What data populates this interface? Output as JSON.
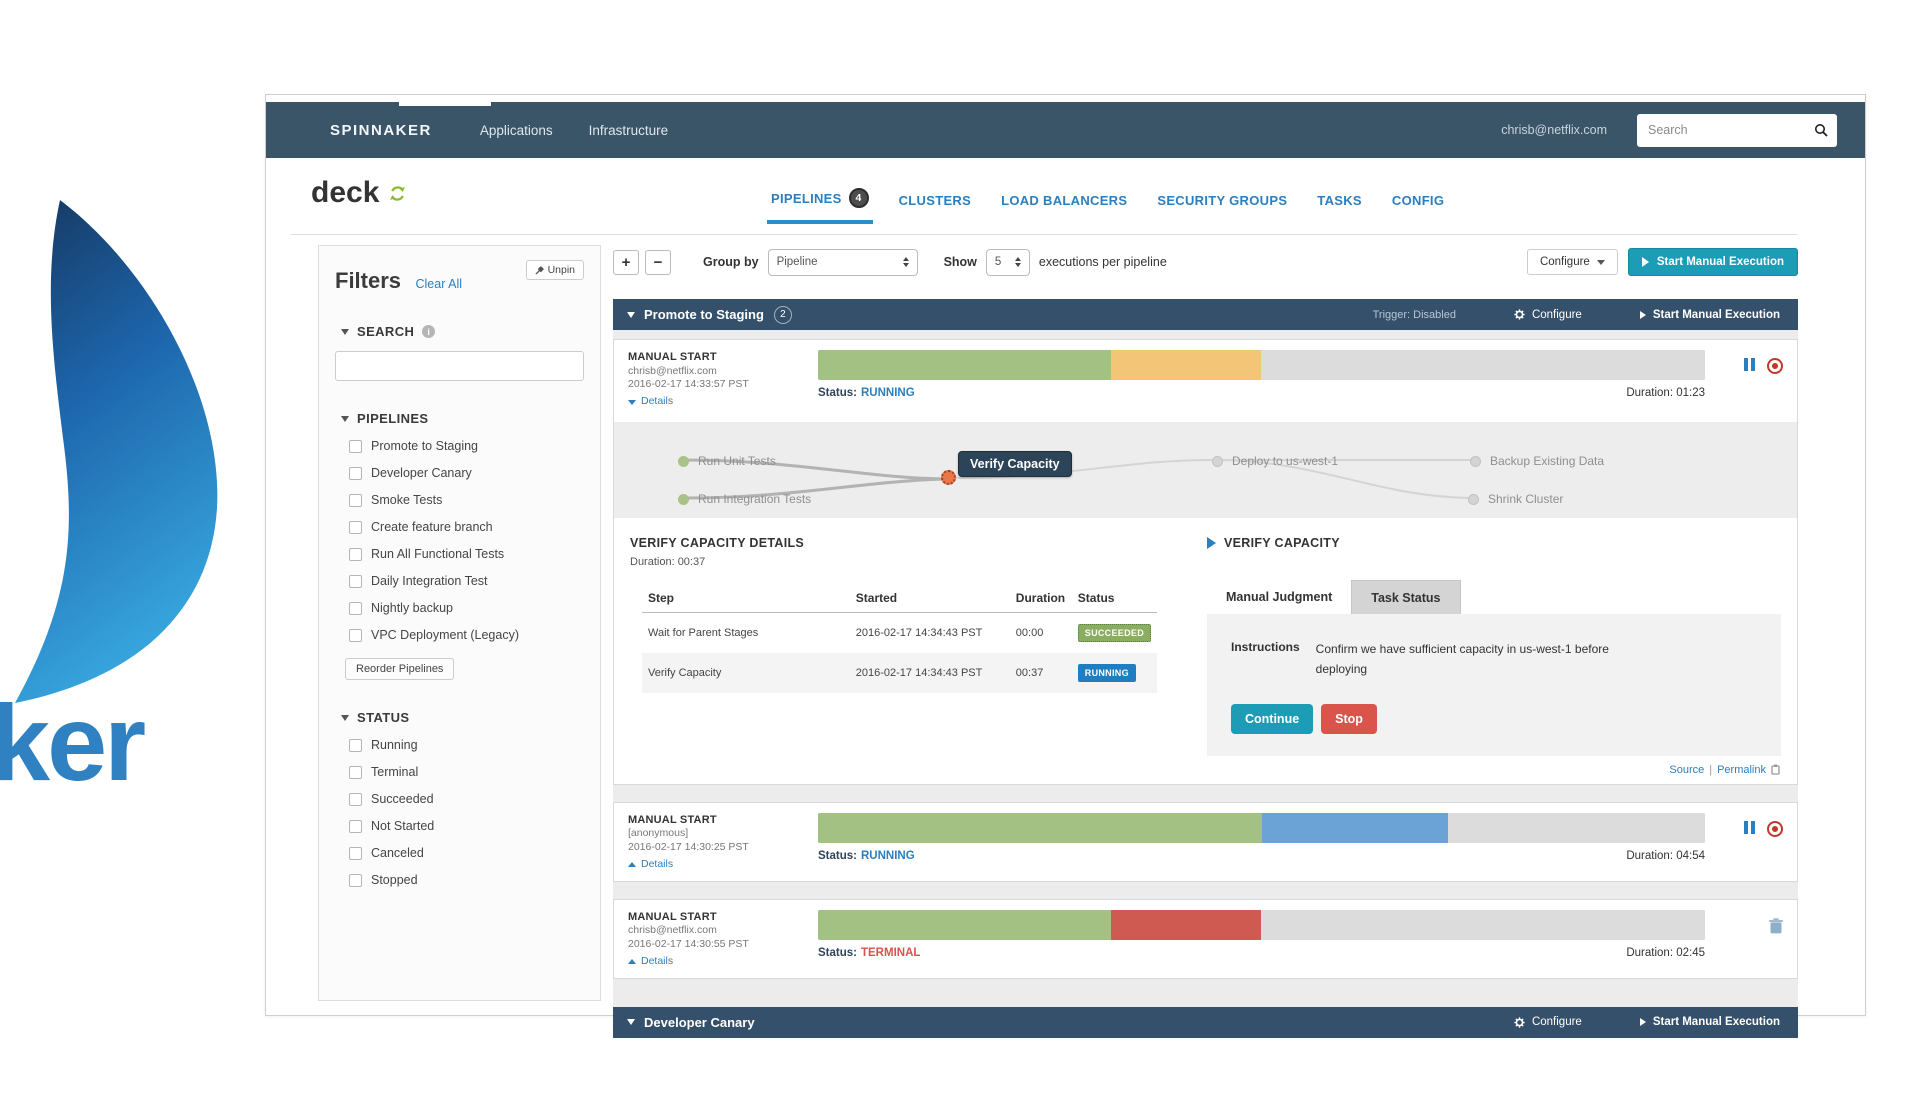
{
  "page": {
    "wordmark_fragment": "ker"
  },
  "navbar": {
    "brand": "SPINNAKER",
    "items": [
      {
        "label": "Applications",
        "active": true
      },
      {
        "label": "Infrastructure",
        "active": false
      }
    ],
    "user_email": "chrisb@netflix.com",
    "search_placeholder": "Search"
  },
  "header": {
    "app_name": "deck",
    "tabs": [
      {
        "label": "PIPELINES",
        "badge": "4",
        "active": true
      },
      {
        "label": "CLUSTERS"
      },
      {
        "label": "LOAD BALANCERS"
      },
      {
        "label": "SECURITY GROUPS"
      },
      {
        "label": "TASKS"
      },
      {
        "label": "CONFIG"
      }
    ]
  },
  "filters": {
    "title": "Filters",
    "clear_all": "Clear All",
    "unpin": "Unpin",
    "search_section": "SEARCH",
    "pipelines_section": "PIPELINES",
    "pipeline_options": [
      "Promote to Staging",
      "Developer Canary",
      "Smoke Tests",
      "Create feature branch",
      "Run All Functional Tests",
      "Daily Integration Test",
      "Nightly backup",
      "VPC Deployment (Legacy)"
    ],
    "reorder_button": "Reorder Pipelines",
    "status_section": "STATUS",
    "status_options": [
      "Running",
      "Terminal",
      "Succeeded",
      "Not Started",
      "Canceled",
      "Stopped"
    ]
  },
  "toolbar": {
    "plus": "+",
    "minus": "−",
    "group_by_label": "Group by",
    "group_by_value": "Pipeline",
    "show_label": "Show",
    "show_value": "5",
    "show_suffix": "executions per pipeline",
    "configure_label": "Configure",
    "start_label": "Start Manual Execution"
  },
  "groups": [
    {
      "name": "Promote to Staging",
      "badge": "2",
      "trigger": "Trigger: Disabled",
      "configure": "Configure",
      "start": "Start Manual Execution"
    },
    {
      "name": "Developer Canary",
      "configure": "Configure",
      "start": "Start Manual Execution"
    }
  ],
  "executions": [
    {
      "trigger_type": "MANUAL START",
      "user": "chrisb@netflix.com",
      "time": "2016-02-17 14:33:57 PST",
      "details_label": "Details",
      "status_label": "Status:",
      "status": "RUNNING",
      "duration": "Duration: 01:23",
      "bar": [
        {
          "color": "bar_green",
          "pct": 33
        },
        {
          "color": "bar_orange",
          "pct": 17
        },
        {
          "color": "bar_gray",
          "pct": 50
        }
      ]
    },
    {
      "trigger_type": "MANUAL START",
      "user": "[anonymous]",
      "time": "2016-02-17 14:30:25 PST",
      "details_label": "Details",
      "status_label": "Status:",
      "status": "RUNNING",
      "duration": "Duration: 04:54",
      "bar": [
        {
          "color": "bar_green",
          "pct": 50
        },
        {
          "color": "bar_blue",
          "pct": 21
        },
        {
          "color": "bar_gray",
          "pct": 29
        }
      ]
    },
    {
      "trigger_type": "MANUAL START",
      "user": "chrisb@netflix.com",
      "time": "2016-02-17 14:30:55 PST",
      "details_label": "Details",
      "status_label": "Status:",
      "status": "TERMINAL",
      "duration": "Duration: 02:45",
      "bar": [
        {
          "color": "bar_green",
          "pct": 33
        },
        {
          "color": "bar_red",
          "pct": 17
        },
        {
          "color": "bar_gray",
          "pct": 50
        }
      ]
    }
  ],
  "stage_graph": {
    "nodes": [
      "Run Unit Tests",
      "Run Integration Tests",
      "Verify Capacity",
      "Deploy to us-west-1",
      "Backup Existing Data",
      "Shrink Cluster"
    ],
    "selected": "Verify Capacity"
  },
  "details": {
    "title": "VERIFY CAPACITY DETAILS",
    "duration": "Duration: 00:37",
    "table": {
      "headers": [
        "Step",
        "Started",
        "Duration",
        "Status"
      ],
      "rows": [
        {
          "step": "Wait for Parent Stages",
          "started": "2016-02-17 14:34:43 PST",
          "duration": "00:00",
          "status": "SUCCEEDED"
        },
        {
          "step": "Verify Capacity",
          "started": "2016-02-17 14:34:43 PST",
          "duration": "00:37",
          "status": "RUNNING"
        }
      ]
    }
  },
  "judgment": {
    "title": "VERIFY CAPACITY",
    "tabs": [
      {
        "label": "Manual Judgment",
        "active": true
      },
      {
        "label": "Task Status",
        "active": false
      }
    ],
    "instructions_label": "Instructions",
    "instructions_text": "Confirm we have sufficient capacity in us-west-1 before deploying",
    "continue_label": "Continue",
    "stop_label": "Stop",
    "source_link": "Source",
    "permalink_link": "Permalink"
  },
  "colors": {
    "accent_teal": "#1d9cb5",
    "navbar": "#3b5568",
    "group_header": "#35506b",
    "link_blue": "#2b7fbe",
    "bar_green": "#a3c183",
    "bar_orange": "#f2c577",
    "bar_blue": "#6ba3d6",
    "bar_red": "#cf5a52",
    "bar_gray": "#dcdcdc",
    "status_terminal": "#d9534f",
    "badge_succeeded": "#8aad62",
    "badge_running": "#1f7ec2",
    "stop_red": "#d9544a",
    "logo_blue": "#2f81c2"
  }
}
